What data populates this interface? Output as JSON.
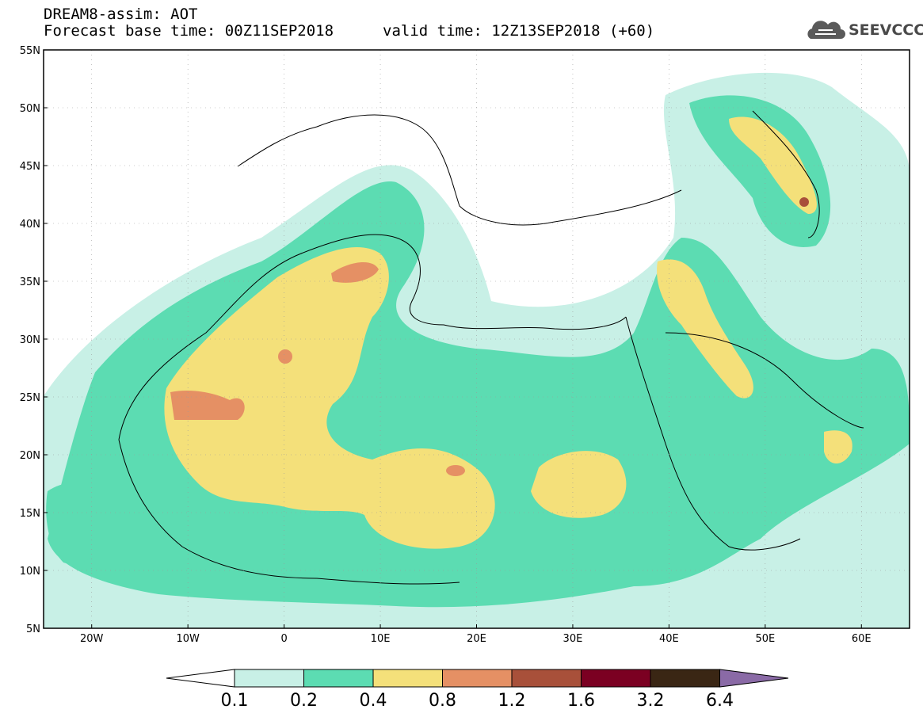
{
  "header": {
    "line1": "DREAM8-assim: AOT",
    "line2": "Forecast base time: 00Z11SEP2018",
    "line3": "valid time: 12Z13SEP2018 (+60)"
  },
  "logo": {
    "text": "SEEVCCC",
    "icon": "cloud-icon"
  },
  "map": {
    "lon_range": [
      -25,
      65
    ],
    "lat_range": [
      5,
      55
    ],
    "lat_ticks": [
      "55N",
      "50N",
      "45N",
      "40N",
      "35N",
      "30N",
      "25N",
      "20N",
      "15N",
      "10N",
      "5N"
    ],
    "lon_ticks": [
      "20W",
      "10W",
      "0",
      "10E",
      "20E",
      "30E",
      "40E",
      "50E",
      "60E"
    ]
  },
  "colorbar": {
    "labels": [
      "0.1",
      "0.2",
      "0.4",
      "0.8",
      "1.2",
      "1.6",
      "3.2",
      "6.4"
    ],
    "colors": [
      "#ffffff",
      "#c8f0e6",
      "#5cdcb2",
      "#f4e07a",
      "#e59064",
      "#a8503a",
      "#7b0022",
      "#3a2614",
      "#8a6aa6"
    ]
  }
}
